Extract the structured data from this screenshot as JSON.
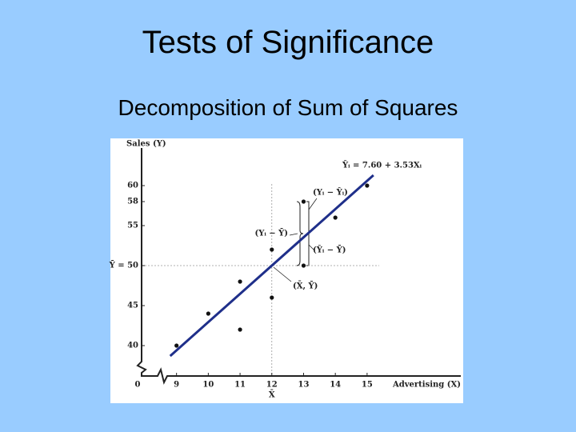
{
  "chart_data": {
    "type": "scatter",
    "title": "Tests of Significance",
    "subtitle": "Decomposition of Sum of Squares",
    "x_label": "Advertising (X)",
    "y_label": "Sales (Y)",
    "origin_label": "0",
    "x_mean_label": "X̄",
    "x": [
      9,
      10,
      11,
      11,
      12,
      12,
      13,
      13,
      14,
      15
    ],
    "values": [
      40,
      44,
      42,
      48,
      46,
      52,
      58,
      50,
      56,
      60
    ],
    "color": "#111111",
    "fit": {
      "name": "Ŷᵢ = 7.60 + 3.53Xᵢ",
      "color": "#1f2f8a",
      "x": [
        8.8,
        15.2
      ],
      "values": [
        38.7,
        61.3
      ]
    },
    "reference_lines": {
      "x": 12,
      "y": 50
    },
    "annotations": [
      "(Yᵢ − Ŷᵢ)",
      "(Yᵢ − Ȳ)",
      "(Ŷᵢ − Ȳ)",
      "(X̄, Ȳ)"
    ],
    "xlim": [
      7.9,
      17.9
    ],
    "ylim": [
      36.2,
      64.7
    ],
    "xticks": [
      9,
      10,
      11,
      12,
      13,
      14,
      15
    ],
    "yticks": [
      40,
      45,
      {
        "value": 50,
        "label": "Ȳ = 50"
      },
      55,
      58,
      60
    ]
  }
}
